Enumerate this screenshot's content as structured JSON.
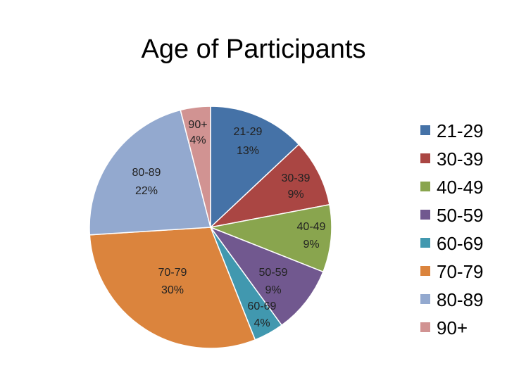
{
  "chart_data": {
    "type": "pie",
    "title": "Age of Participants",
    "categories": [
      "21-29",
      "30-39",
      "40-49",
      "50-59",
      "60-69",
      "70-79",
      "80-89",
      "90+"
    ],
    "values": [
      13,
      9,
      9,
      9,
      4,
      30,
      22,
      4
    ],
    "data_labels": [
      "13%",
      "9%",
      "9%",
      "9%",
      "4%",
      "30%",
      "22%",
      "4%"
    ],
    "colors": [
      "#4572a7",
      "#aa4643",
      "#89a54e",
      "#71588f",
      "#4198af",
      "#db843d",
      "#93a9cf",
      "#d19392"
    ],
    "legend": "right",
    "start": "top",
    "direction": "clockwise"
  }
}
